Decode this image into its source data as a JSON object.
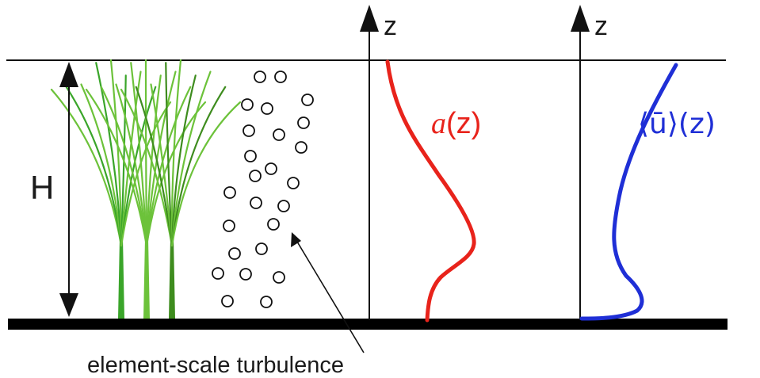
{
  "labels": {
    "height": "H",
    "z_axis_1": "z",
    "z_axis_2": "z",
    "density_func": "a",
    "density_arg": "(z)",
    "velocity_func": "⟨ū⟩",
    "velocity_arg": "(z)",
    "turbulence": "element-scale turbulence"
  },
  "colors": {
    "density_curve": "#e8231b",
    "velocity_curve": "#1f2fd6",
    "axes": "#111111",
    "bed": "#000000",
    "vegetation_dark": "#3e8c1e",
    "vegetation_mid": "#3aa52a",
    "vegetation_light": "#6cc23a",
    "eddies": "#111111"
  },
  "icons": {
    "vegetation": "seagrass-stems-icon",
    "eddies": "turbulent-eddy-circles-icon"
  }
}
